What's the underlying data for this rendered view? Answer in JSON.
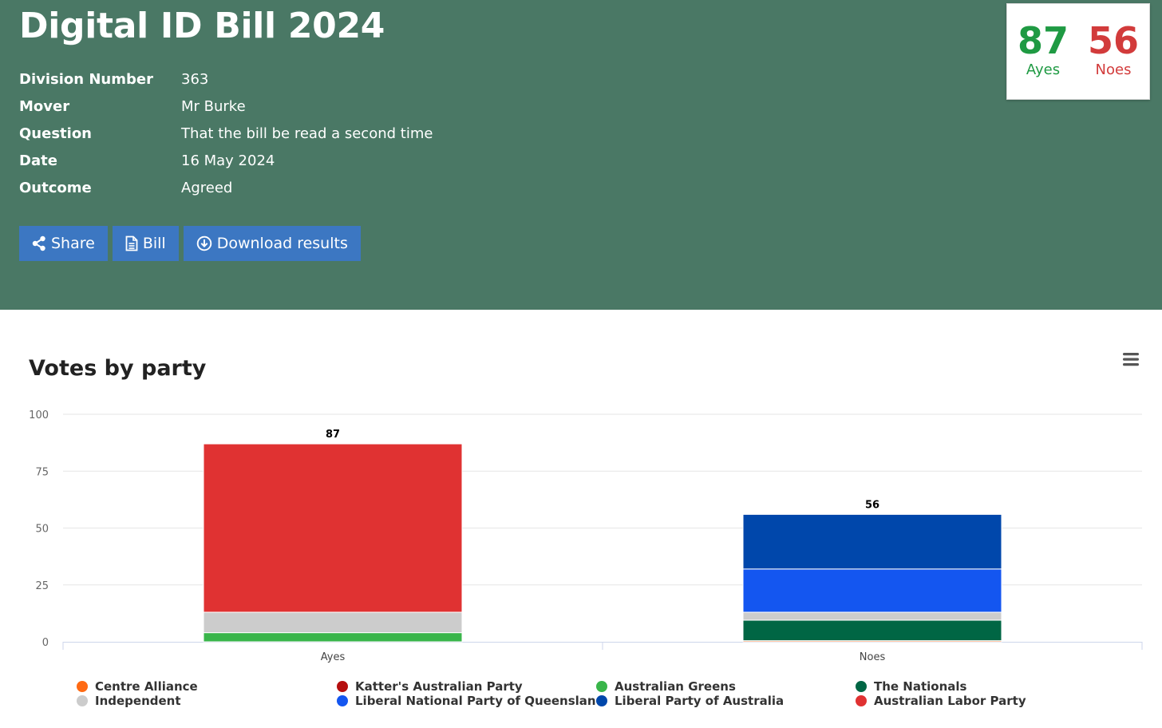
{
  "header": {
    "title": "Digital ID Bill 2024",
    "meta": [
      {
        "label": "Division Number",
        "value": "363"
      },
      {
        "label": "Mover",
        "value": "Mr Burke"
      },
      {
        "label": "Question",
        "value": "That the bill be read a second time"
      },
      {
        "label": "Date",
        "value": "16 May 2024"
      },
      {
        "label": "Outcome",
        "value": "Agreed"
      }
    ],
    "buttons": {
      "share": {
        "label": "Share",
        "icon": "share-icon"
      },
      "bill": {
        "label": "Bill",
        "icon": "document-icon"
      },
      "download": {
        "label": "Download results",
        "icon": "download-circle-icon"
      }
    },
    "tally": {
      "ayes": {
        "value": "87",
        "label": "Ayes",
        "color": "#1f9a43"
      },
      "noes": {
        "value": "56",
        "label": "Noes",
        "color": "#d23b3b"
      }
    }
  },
  "colors": {
    "header_bg": "#4a7865",
    "button_bg": "#3c77c2"
  },
  "chart_data": {
    "type": "bar",
    "stacked": true,
    "title": "Votes by party",
    "categories": [
      "Ayes",
      "Noes"
    ],
    "ylim": [
      0,
      100
    ],
    "yticks": [
      0,
      25,
      50,
      75,
      100
    ],
    "grid": true,
    "legend_position": "bottom",
    "totals": [
      87,
      56
    ],
    "series": [
      {
        "name": "Centre Alliance",
        "color": "#ff6a13",
        "values": [
          0,
          0.5
        ]
      },
      {
        "name": "Katter's Australian Party",
        "color": "#b50f0f",
        "values": [
          0,
          0
        ]
      },
      {
        "name": "Australian Greens",
        "color": "#39b54a",
        "values": [
          4,
          0
        ]
      },
      {
        "name": "The Nationals",
        "color": "#006644",
        "values": [
          0,
          9
        ]
      },
      {
        "name": "Independent",
        "color": "#cccccc",
        "values": [
          9,
          3.5
        ]
      },
      {
        "name": "Liberal National Party of Queensland",
        "color": "#1456f0",
        "values": [
          0,
          19
        ]
      },
      {
        "name": "Liberal Party of Australia",
        "color": "#0047ab",
        "values": [
          0,
          24
        ]
      },
      {
        "name": "Australian Labor Party",
        "color": "#e03232",
        "values": [
          74,
          0
        ]
      }
    ],
    "legend_order": [
      "Centre Alliance",
      "Katter's Australian Party",
      "Australian Greens",
      "The Nationals",
      "Independent",
      "Liberal National Party of Queensland",
      "Liberal Party of Australia",
      "Australian Labor Party"
    ],
    "menu_icon": "hamburger-menu-icon"
  }
}
